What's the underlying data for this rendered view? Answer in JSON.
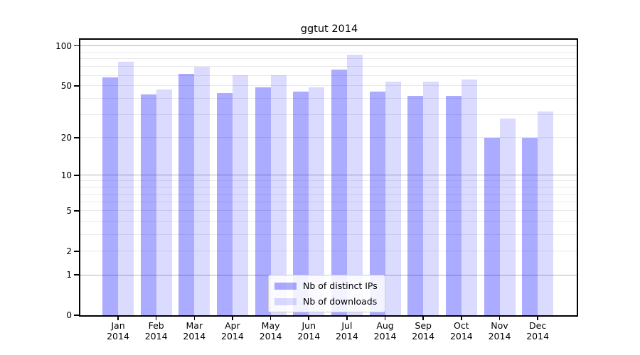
{
  "title": "ggtut 2014",
  "chart_data": {
    "type": "bar",
    "title": "ggtut 2014",
    "x": [
      "Jan 2014",
      "Feb 2014",
      "Mar 2014",
      "Apr 2014",
      "May 2014",
      "Jun 2014",
      "Jul 2014",
      "Aug 2014",
      "Sep 2014",
      "Oct 2014",
      "Nov 2014",
      "Dec 2014"
    ],
    "series": [
      {
        "name": "Nb of distinct IPs",
        "color": "rgba(0,0,255,0.33)",
        "values": [
          58,
          43,
          62,
          44,
          49,
          45,
          66,
          45,
          42,
          42,
          20,
          20
        ]
      },
      {
        "name": "Nb of downloads",
        "color": "rgba(0,0,255,0.14)",
        "values": [
          76,
          47,
          70,
          60,
          60,
          49,
          86,
          54,
          54,
          56,
          28,
          32
        ]
      }
    ],
    "y_scale": "log1p",
    "ylim": [
      0,
      112
    ],
    "y_tick_values": [
      0,
      1,
      2,
      5,
      10,
      20,
      50,
      100
    ],
    "y_major_gridlines": [
      1,
      10,
      100
    ],
    "y_minor_gridlines": [
      2,
      3,
      4,
      5,
      6,
      7,
      8,
      9,
      20,
      30,
      40,
      50,
      60,
      70,
      80,
      90
    ],
    "grid": true,
    "legend_position": "lower center",
    "xlabel": "",
    "ylabel": ""
  },
  "colors": {
    "bar_distinct_ips": "rgba(0,0,255,0.33)",
    "bar_downloads": "rgba(0,0,255,0.14)",
    "major_gridline": "#b3b3b3",
    "minor_gridline": "#e9e9ec",
    "axis_frame": "#000000",
    "background": "#ffffff",
    "legend_border": "#cccccc"
  }
}
